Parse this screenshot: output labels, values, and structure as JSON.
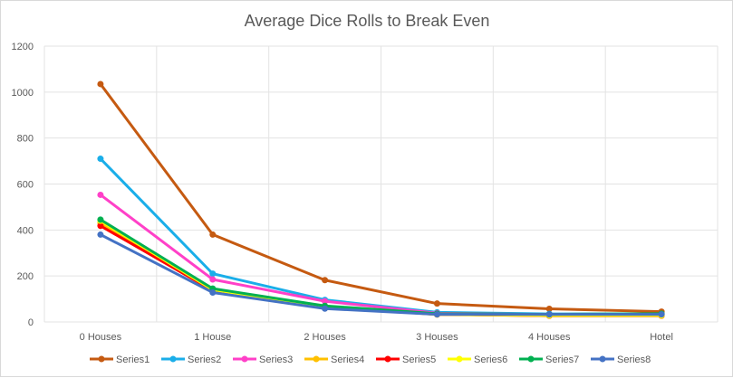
{
  "chart_data": {
    "type": "line",
    "title": "Average Dice Rolls to Break Even",
    "xlabel": "",
    "ylabel": "",
    "categories": [
      "0 Houses",
      "1 House",
      "2 Houses",
      "3 Houses",
      "4 Houses",
      "Hotel"
    ],
    "ylim": [
      0,
      1200
    ],
    "yticks": [
      0,
      200,
      400,
      600,
      800,
      1000,
      1200
    ],
    "grid": {
      "horizontal": true,
      "vertical": true
    },
    "legend_position": "bottom",
    "series": [
      {
        "name": "Series1",
        "color": "#c55a11",
        "values": [
          1035,
          380,
          182,
          80,
          57,
          45
        ]
      },
      {
        "name": "Series2",
        "color": "#1aaee9",
        "values": [
          710,
          210,
          96,
          42,
          35,
          35
        ]
      },
      {
        "name": "Series3",
        "color": "#ff40c8",
        "values": [
          553,
          185,
          90,
          38,
          32,
          32
        ]
      },
      {
        "name": "Series4",
        "color": "#ffc000",
        "values": [
          430,
          140,
          68,
          32,
          27,
          27
        ]
      },
      {
        "name": "Series5",
        "color": "#ff0000",
        "values": [
          418,
          137,
          65,
          33,
          27,
          27
        ]
      },
      {
        "name": "Series6",
        "color": "#ffff00",
        "values": [
          440,
          140,
          66,
          33,
          28,
          28
        ]
      },
      {
        "name": "Series7",
        "color": "#00b050",
        "values": [
          445,
          145,
          70,
          36,
          33,
          36
        ]
      },
      {
        "name": "Series8",
        "color": "#4472c4",
        "values": [
          380,
          128,
          58,
          33,
          33,
          33
        ]
      }
    ]
  }
}
